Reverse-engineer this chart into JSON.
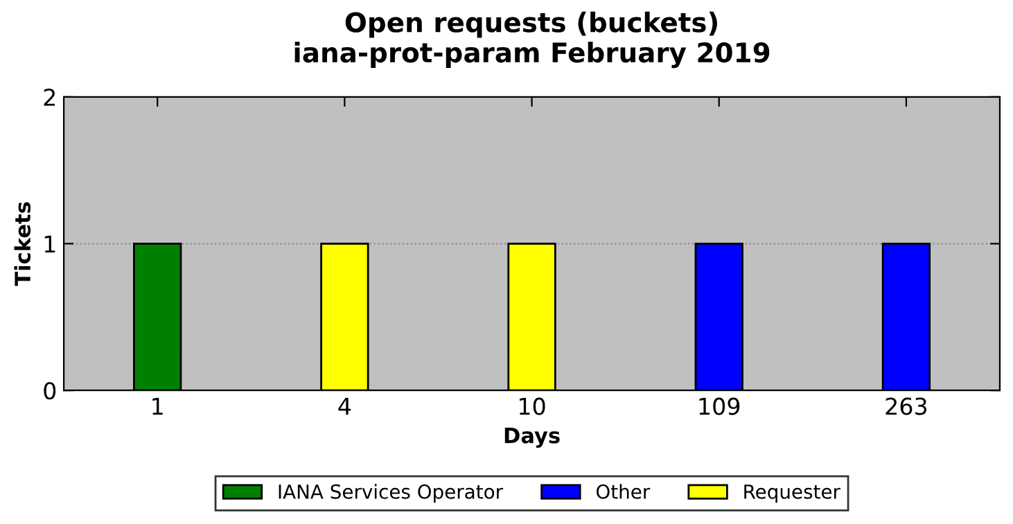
{
  "chart_data": {
    "type": "bar",
    "title": "Open requests (buckets)",
    "subtitle": "iana-prot-param February 2019",
    "xlabel": "Days",
    "ylabel": "Tickets",
    "categories": [
      "1",
      "4",
      "10",
      "109",
      "263"
    ],
    "series": [
      {
        "name": "IANA Services Operator",
        "color": "#008000",
        "values": [
          1,
          null,
          null,
          null,
          null
        ]
      },
      {
        "name": "Other",
        "color": "#0000ff",
        "values": [
          null,
          null,
          null,
          1,
          1
        ]
      },
      {
        "name": "Requester",
        "color": "#ffff00",
        "values": [
          null,
          1,
          1,
          null,
          null
        ]
      }
    ],
    "ylim": [
      0,
      2
    ],
    "yticks": [
      0,
      1,
      2
    ],
    "grid": "y",
    "legend": "bottom"
  }
}
